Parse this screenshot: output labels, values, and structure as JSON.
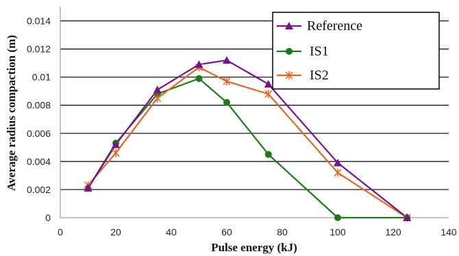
{
  "chart_data": {
    "type": "line",
    "xlabel": "Pulse energy (kJ)",
    "ylabel": "Average radius compaction (m)",
    "xlim": [
      0,
      140
    ],
    "ylim": [
      0,
      0.015
    ],
    "x_ticks": [
      "0",
      "20",
      "40",
      "60",
      "80",
      "100",
      "120",
      "140"
    ],
    "y_ticks": [
      "0",
      "0.002",
      "0.004",
      "0.006",
      "0.008",
      "0.01",
      "0.012",
      "0.014"
    ],
    "grid": "horizontal",
    "legend_position": "top-right",
    "series": [
      {
        "name": "Reference",
        "color": "#7b0f8c",
        "marker": "triangle",
        "x": [
          10,
          20,
          35,
          50,
          60,
          75,
          100,
          125
        ],
        "y": [
          0.0021,
          0.0052,
          0.0091,
          0.0109,
          0.0112,
          0.0095,
          0.0039,
          0.0
        ]
      },
      {
        "name": "IS1",
        "color": "#1a7a1a",
        "marker": "circle",
        "x": [
          10,
          20,
          35,
          50,
          60,
          75,
          100,
          125
        ],
        "y": [
          0.0021,
          0.0053,
          0.0088,
          0.0099,
          0.0082,
          0.0045,
          0.0,
          0.0
        ]
      },
      {
        "name": "IS2",
        "color": "#e8641e",
        "marker": "star",
        "x": [
          10,
          20,
          35,
          50,
          60,
          75,
          100,
          125
        ],
        "y": [
          0.0023,
          0.0046,
          0.0085,
          0.0107,
          0.0097,
          0.0088,
          0.0032,
          0.0
        ]
      }
    ]
  }
}
